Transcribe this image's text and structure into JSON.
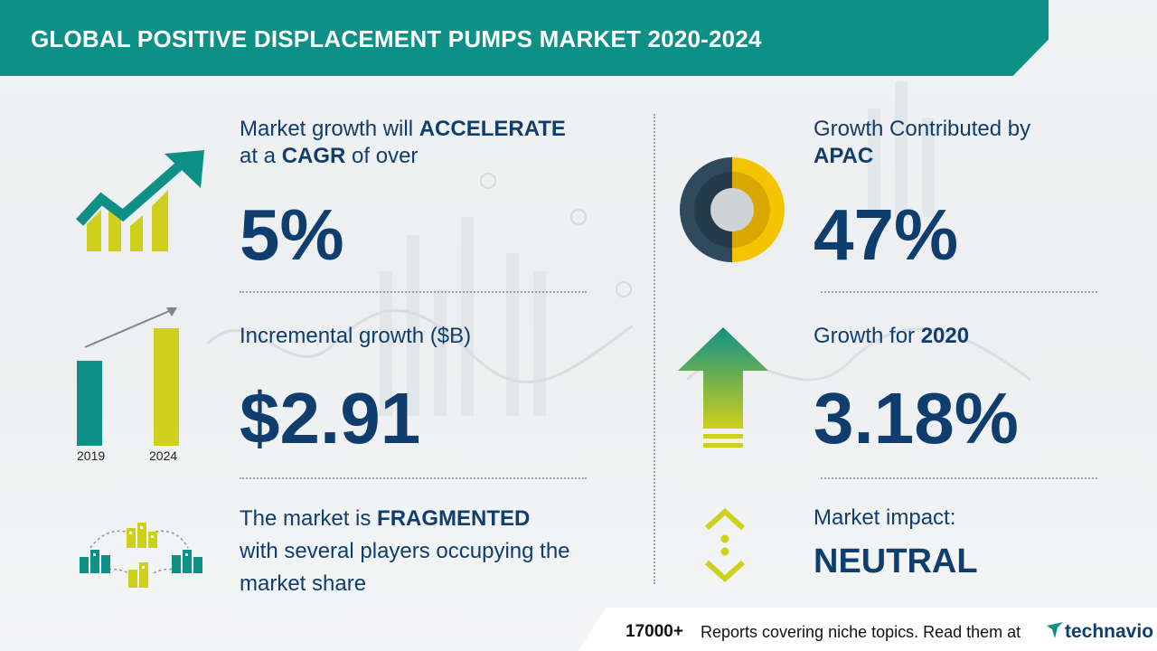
{
  "header": {
    "title": "GLOBAL POSITIVE DISPLACEMENT PUMPS MARKET 2020-2024"
  },
  "cagr": {
    "line1_pre": "Market growth will ",
    "line1_bold": "ACCELERATE",
    "line2_pre": "at a ",
    "line2_bold": "CAGR",
    "line2_post": " of over",
    "value": "5%"
  },
  "incremental": {
    "label": "Incremental growth ($B)",
    "value": "$2.91",
    "year_start": "2019",
    "year_end": "2024"
  },
  "market_structure": {
    "line1_pre": "The market is ",
    "line1_bold": "FRAGMENTED",
    "line2": "with several players occupying the",
    "line3": "market share"
  },
  "region": {
    "line1": "Growth Contributed by",
    "line2_bold": "APAC",
    "value": "47%",
    "share": 0.47
  },
  "yoy": {
    "label_pre": "Growth for ",
    "label_bold": "2020",
    "value": "3.18%"
  },
  "impact": {
    "label": "Market impact:",
    "value": "NEUTRAL"
  },
  "footer": {
    "count": "17000+",
    "text": "Reports covering niche topics. Read them at",
    "brand": "technavio"
  },
  "colors": {
    "teal": "#0e9087",
    "navy": "#0f3e6e",
    "lime": "#cfd01c",
    "yellow": "#f5c400",
    "dark_slate": "#2f4a5c"
  },
  "icons": [
    "growth-arrow-icon",
    "bar-growth-icon",
    "buildings-icon",
    "donut-icon",
    "up-arrow-icon",
    "neutral-chevrons-icon",
    "technavio-logo-icon"
  ]
}
